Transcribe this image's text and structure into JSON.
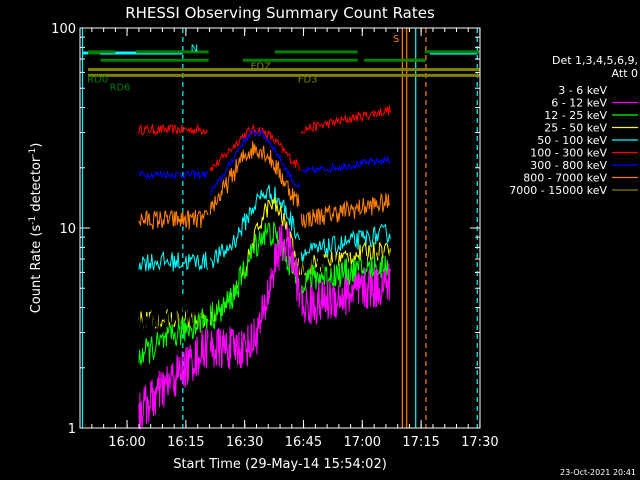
{
  "chart_data": {
    "type": "line",
    "title": "RHESSI Observing Summary Count Rates",
    "xlabel": "Start Time (29-May-14 15:54:02)",
    "ylabel_main": "Count Rate (s",
    "ylabel_sup": "-1",
    "ylabel_mid": " detector",
    "ylabel_tail": ")",
    "yscale": "log",
    "ylim": [
      1,
      100
    ],
    "xlim": [
      -6.03,
      96.0
    ],
    "xticks": [
      {
        "v": 5.97,
        "label": "16:00"
      },
      {
        "v": 20.97,
        "label": "16:15"
      },
      {
        "v": 35.97,
        "label": "16:30"
      },
      {
        "v": 50.97,
        "label": "16:45"
      },
      {
        "v": 65.97,
        "label": "17:00"
      },
      {
        "v": 80.97,
        "label": "17:15"
      },
      {
        "v": 95.97,
        "label": "17:30"
      }
    ],
    "yticks": [
      {
        "v": 1,
        "label": "1"
      },
      {
        "v": 10,
        "label": "10"
      },
      {
        "v": 100,
        "label": "100"
      }
    ],
    "legend_header": [
      "Det 1,3,4,5,6,9,",
      "Att 0"
    ],
    "series": [
      {
        "name": "3 - 6 keV",
        "color": "#000000"
      },
      {
        "name": "6 - 12 keV",
        "color": "#ff00ff"
      },
      {
        "name": "12 - 25 keV",
        "color": "#00ff00"
      },
      {
        "name": "25 - 50 keV",
        "color": "#ffff00"
      },
      {
        "name": "50 - 100 keV",
        "color": "#00ffff"
      },
      {
        "name": "100 - 300 keV",
        "color": "#ff0000"
      },
      {
        "name": "300 - 800 keV",
        "color": "#0000ff"
      },
      {
        "name": "800 - 7000 keV",
        "color": "#ff8000"
      },
      {
        "name": "7000 - 15000 keV",
        "color": "#808000"
      }
    ],
    "flag_labels": {
      "N": "N",
      "S": "S",
      "FDZ": "FDZ",
      "FD3": "FD3",
      "RD0": "RD0",
      "RD6": "RD6"
    },
    "timestamp": "23-Oct-2021 20:41"
  }
}
